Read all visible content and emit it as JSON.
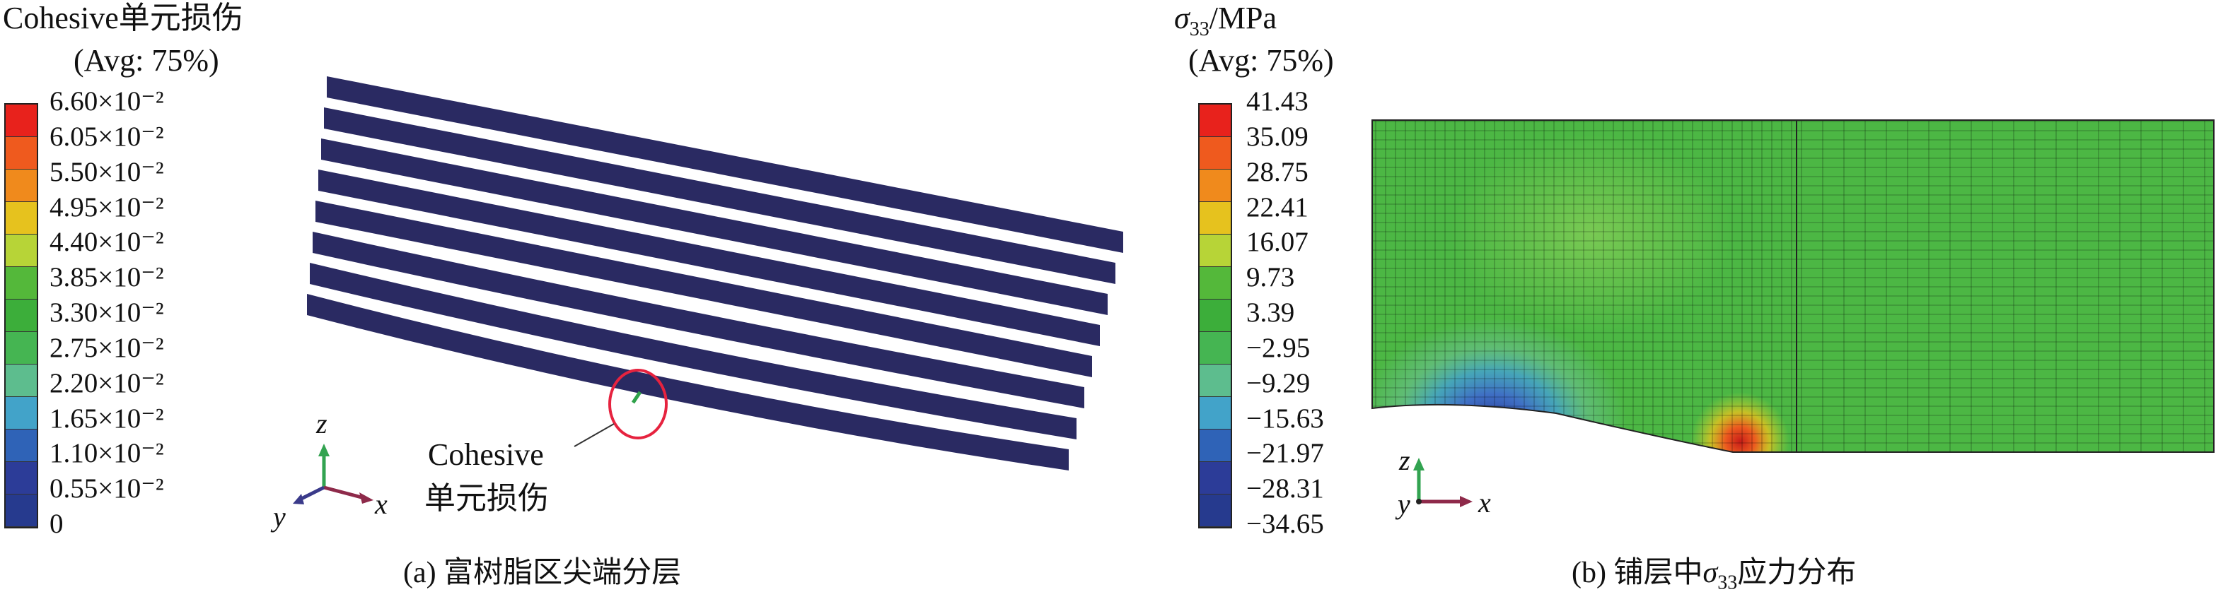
{
  "panel_a": {
    "legend_title": "Cohesive单元损伤",
    "legend_avg": "(Avg: 75%)",
    "legend_ticks": [
      "6.60×10⁻²",
      "6.05×10⁻²",
      "5.50×10⁻²",
      "4.95×10⁻²",
      "4.40×10⁻²",
      "3.85×10⁻²",
      "3.30×10⁻²",
      "2.75×10⁻²",
      "2.20×10⁻²",
      "1.65×10⁻²",
      "1.10×10⁻²",
      "0.55×10⁻²",
      "0"
    ],
    "annotation_line1": "Cohesive",
    "annotation_line2": "单元损伤",
    "axis_z": "z",
    "axis_y": "y",
    "axis_x": "x",
    "caption": "(a) 富树脂区尖端分层"
  },
  "panel_b": {
    "legend_title_sym": "σ",
    "legend_title_sub": "33",
    "legend_title_unit": "/MPa",
    "legend_avg": "(Avg: 75%)",
    "legend_ticks": [
      "41.43",
      "35.09",
      "28.75",
      "22.41",
      "16.07",
      "9.73",
      "3.39",
      "−2.95",
      "−9.29",
      "−15.63",
      "−21.97",
      "−28.31",
      "−34.65"
    ],
    "axis_z": "z",
    "axis_y": "y",
    "axis_x": "x",
    "caption_pre": "(b) 铺层中",
    "caption_sym": "σ",
    "caption_sub": "33",
    "caption_post": "应力分布"
  },
  "colors": {
    "contour": [
      "#e8221c",
      "#ef5a1e",
      "#f08a1c",
      "#e6c21e",
      "#b7d437",
      "#54b83a",
      "#3cae3a",
      "#45b552",
      "#5dbd8e",
      "#42a3c9",
      "#2f63b7",
      "#2c3c98",
      "#263a8e"
    ],
    "laminate": "#2a2a62",
    "highlight_circle": "#e6233f",
    "axis_z": "#32a350",
    "axis_x": "#8e2a4a",
    "axis_y": "#3a3a8a"
  }
}
